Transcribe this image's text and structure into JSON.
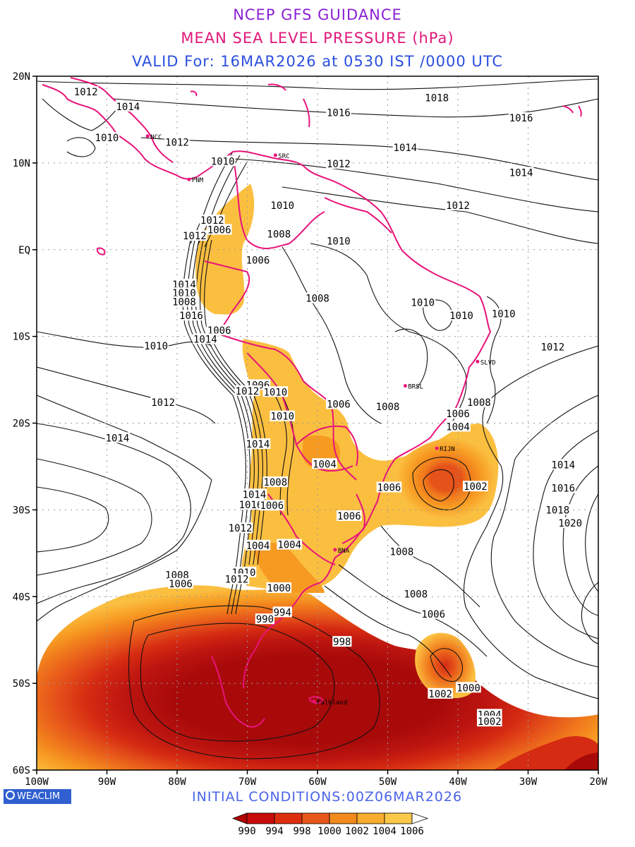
{
  "header": {
    "line1": "NCEP GFS GUIDANCE",
    "line2": "MEAN SEA LEVEL PRESSURE (hPa)",
    "line3": "VALID For: 16MAR2026 at 0530 IST /0000 UTC"
  },
  "colors": {
    "line1": "#8a1fd6",
    "line2": "#e0177a",
    "line3": "#2b4fe0",
    "initial": "#4a64e8",
    "coast": "#e8137a",
    "isobar": "#111111",
    "grid": "#9a9a9a"
  },
  "axes": {
    "lat_labels": [
      "20N",
      "10N",
      "EQ",
      "10S",
      "20S",
      "30S",
      "40S",
      "50S",
      "60S"
    ],
    "lon_labels": [
      "100W",
      "90W",
      "80W",
      "70W",
      "60W",
      "50W",
      "40W",
      "30W",
      "20W"
    ],
    "lat_range": [
      -60,
      20
    ],
    "lon_range": [
      -100,
      -20
    ],
    "grid": "dotted, every 10 degrees"
  },
  "legend": {
    "levels": [
      "990",
      "994",
      "998",
      "1000",
      "1002",
      "1004",
      "1006"
    ],
    "colors": [
      "#b00000",
      "#c80b0b",
      "#dd2f10",
      "#e8561a",
      "#f28a1c",
      "#f8ad2e",
      "#fbc84a",
      "#ffffff"
    ]
  },
  "fill_palette": {
    "lt990": "#a80a0a",
    "lt994": "#bd1510",
    "lt998": "#d52b12",
    "lt1000": "#e5521a",
    "lt1002": "#f0781c",
    "lt1004": "#f79a22",
    "lt1006": "#fbbf40"
  },
  "isobar_labels": [
    {
      "t": "1012",
      "lon": -93,
      "lat": 18.2
    },
    {
      "t": "1014",
      "lon": -87,
      "lat": 16.5
    },
    {
      "t": "1016",
      "lon": -57,
      "lat": 15.8
    },
    {
      "t": "1018",
      "lon": -43,
      "lat": 17.5
    },
    {
      "t": "1016",
      "lon": -31,
      "lat": 15.2
    },
    {
      "t": "1010",
      "lon": -90,
      "lat": 12.9
    },
    {
      "t": "1012",
      "lon": -80,
      "lat": 12.4
    },
    {
      "t": "1014",
      "lon": -47.5,
      "lat": 11.8
    },
    {
      "t": "1012",
      "lon": -57,
      "lat": 9.9
    },
    {
      "t": "1014",
      "lon": -31,
      "lat": 8.9
    },
    {
      "t": "1010",
      "lon": -73.5,
      "lat": 10.2
    },
    {
      "t": "1012",
      "lon": -40,
      "lat": 5.1
    },
    {
      "t": "1010",
      "lon": -65,
      "lat": 5.1
    },
    {
      "t": "1012",
      "lon": -75,
      "lat": 3.4
    },
    {
      "t": "1006",
      "lon": -74,
      "lat": 2.3
    },
    {
      "t": "1012",
      "lon": -77.5,
      "lat": 1.6
    },
    {
      "t": "1008",
      "lon": -65.5,
      "lat": 1.8
    },
    {
      "t": "1010",
      "lon": -57,
      "lat": 1
    },
    {
      "t": "1006",
      "lon": -68.5,
      "lat": -1.2
    },
    {
      "t": "1014",
      "lon": -79,
      "lat": -4
    },
    {
      "t": "1010",
      "lon": -79,
      "lat": -5
    },
    {
      "t": "1008",
      "lon": -79,
      "lat": -6
    },
    {
      "t": "1016",
      "lon": -78,
      "lat": -7.6
    },
    {
      "t": "1008",
      "lon": -60,
      "lat": -5.6
    },
    {
      "t": "1010",
      "lon": -45,
      "lat": -6.1
    },
    {
      "t": "1010",
      "lon": -39.5,
      "lat": -7.6
    },
    {
      "t": "1010",
      "lon": -33.5,
      "lat": -7.4
    },
    {
      "t": "1006",
      "lon": -74,
      "lat": -9.3
    },
    {
      "t": "1014",
      "lon": -76,
      "lat": -10.3
    },
    {
      "t": "1010",
      "lon": -83,
      "lat": -11.1
    },
    {
      "t": "1012",
      "lon": -26.5,
      "lat": -11.2
    },
    {
      "t": "1006",
      "lon": -68.5,
      "lat": -15.6
    },
    {
      "t": "1012",
      "lon": -70,
      "lat": -16.3
    },
    {
      "t": "1010",
      "lon": -66,
      "lat": -16.4
    },
    {
      "t": "1006",
      "lon": -57,
      "lat": -17.8
    },
    {
      "t": "1008",
      "lon": -50,
      "lat": -18.1
    },
    {
      "t": "1008",
      "lon": -37,
      "lat": -17.6
    },
    {
      "t": "1006",
      "lon": -40,
      "lat": -18.9
    },
    {
      "t": "1012",
      "lon": -82,
      "lat": -17.6
    },
    {
      "t": "1010",
      "lon": -65,
      "lat": -19.2
    },
    {
      "t": "1004",
      "lon": -40,
      "lat": -20.4
    },
    {
      "t": "1014",
      "lon": -88.5,
      "lat": -21.7
    },
    {
      "t": "1014",
      "lon": -68.5,
      "lat": -22.4
    },
    {
      "t": "1004",
      "lon": -59,
      "lat": -24.7
    },
    {
      "t": "1014",
      "lon": -25,
      "lat": -24.8
    },
    {
      "t": "1008",
      "lon": -66,
      "lat": -26.8
    },
    {
      "t": "1006",
      "lon": -49.8,
      "lat": -27.4
    },
    {
      "t": "1002",
      "lon": -37.5,
      "lat": -27.3
    },
    {
      "t": "1016",
      "lon": -25,
      "lat": -27.5
    },
    {
      "t": "1014",
      "lon": -69,
      "lat": -28.2
    },
    {
      "t": "1016",
      "lon": -69.5,
      "lat": -29.4
    },
    {
      "t": "1006",
      "lon": -66.5,
      "lat": -29.5
    },
    {
      "t": "1018",
      "lon": -25.8,
      "lat": -30
    },
    {
      "t": "1020",
      "lon": -24,
      "lat": -31.5
    },
    {
      "t": "1006",
      "lon": -55.5,
      "lat": -30.7
    },
    {
      "t": "1012",
      "lon": -71,
      "lat": -32.1
    },
    {
      "t": "1004",
      "lon": -68.5,
      "lat": -34.1
    },
    {
      "t": "1004",
      "lon": -64,
      "lat": -34
    },
    {
      "t": "1008",
      "lon": -48,
      "lat": -34.8
    },
    {
      "t": "1008",
      "lon": -80,
      "lat": -37.5
    },
    {
      "t": "1006",
      "lon": -79.5,
      "lat": -38.5
    },
    {
      "t": "1010",
      "lon": -70.5,
      "lat": -37.2
    },
    {
      "t": "1012",
      "lon": -71.5,
      "lat": -38
    },
    {
      "t": "1000",
      "lon": -65.5,
      "lat": -39
    },
    {
      "t": "1008",
      "lon": -46,
      "lat": -39.7
    },
    {
      "t": "994",
      "lon": -65,
      "lat": -41.8
    },
    {
      "t": "990",
      "lon": -67.5,
      "lat": -42.6
    },
    {
      "t": "1006",
      "lon": -43.5,
      "lat": -42
    },
    {
      "t": "998",
      "lon": -56.5,
      "lat": -45.2
    },
    {
      "t": "1000",
      "lon": -38.5,
      "lat": -50.5
    },
    {
      "t": "1002",
      "lon": -42.5,
      "lat": -51.2
    },
    {
      "t": "1004",
      "lon": -35.5,
      "lat": -53.6
    },
    {
      "t": "1002",
      "lon": -35.5,
      "lat": -54.4
    }
  ],
  "places": [
    {
      "t": "NCC",
      "lon": -84.2,
      "lat": 13.1
    },
    {
      "t": "SRC",
      "lon": -66,
      "lat": 10.9
    },
    {
      "t": "PNM",
      "lon": -78.3,
      "lat": 8.1
    },
    {
      "t": "SLVD",
      "lon": -37.2,
      "lat": -12.9
    },
    {
      "t": "BRSL",
      "lon": -47.5,
      "lat": -15.7
    },
    {
      "t": "RIJN",
      "lon": -43,
      "lat": -22.9
    },
    {
      "t": "BNA",
      "lon": -57.5,
      "lat": -34.6
    },
    {
      "t": "Falkland",
      "lon": -60.5,
      "lat": -52.1
    }
  ],
  "initial_conditions": "INITIAL CONDITIONS:00Z06MAR2026",
  "brand": "WEACLIM"
}
